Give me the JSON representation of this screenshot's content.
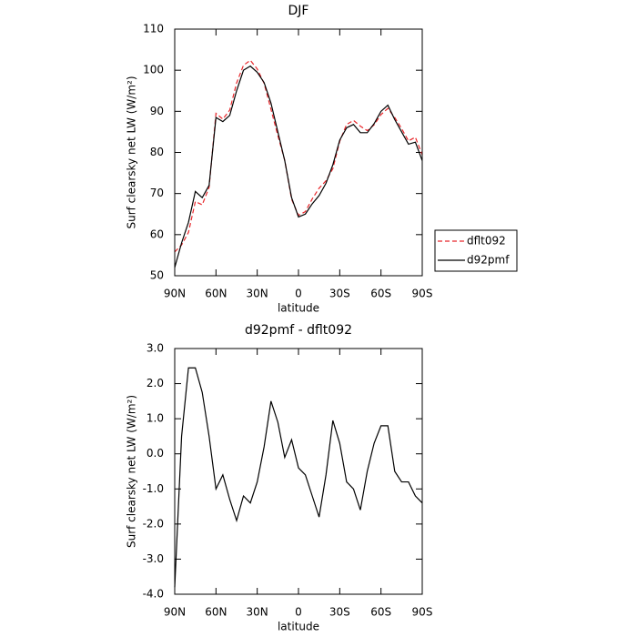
{
  "chart_data": [
    {
      "type": "line",
      "title": "DJF",
      "xlabel": "latitude",
      "ylabel": "Surf clearsky net LW (W/m²)",
      "x": [
        90,
        85,
        80,
        75,
        70,
        65,
        60,
        55,
        50,
        45,
        40,
        35,
        30,
        25,
        20,
        15,
        10,
        5,
        0,
        -5,
        -10,
        -15,
        -20,
        -25,
        -30,
        -35,
        -40,
        -45,
        -50,
        -55,
        -60,
        -65,
        -70,
        -75,
        -80,
        -85,
        -90
      ],
      "series": [
        {
          "name": "dflt092",
          "color": "#e8262a",
          "linestyle": "dashed",
          "values": [
            55.8,
            57.5,
            60.55,
            68.05,
            67.25,
            71.5,
            89.5,
            88.1,
            90.3,
            96.9,
            101.2,
            102.4,
            100.3,
            96.8,
            90.5,
            84.1,
            78.1,
            68.6,
            64.7,
            65.6,
            68.7,
            71.3,
            73.1,
            76.05,
            82.7,
            86.8,
            87.8,
            86.4,
            85.3,
            86.7,
            89.2,
            90.7,
            88.5,
            85.8,
            82.8,
            83.7,
            79.4
          ]
        },
        {
          "name": "d92pmf",
          "color": "#000000",
          "linestyle": "solid",
          "values": [
            52,
            58,
            63,
            70.5,
            69,
            72,
            88.5,
            87.5,
            89,
            95,
            100,
            101,
            99.5,
            97,
            92,
            85,
            78,
            69,
            64.3,
            65,
            67.5,
            69.5,
            72.5,
            77,
            83,
            86,
            86.8,
            84.8,
            84.8,
            87,
            90,
            91.5,
            88,
            85,
            82,
            82.5,
            78
          ]
        }
      ],
      "xlim": [
        90,
        -90
      ],
      "xticks": [
        {
          "value": 90,
          "label": "90N"
        },
        {
          "value": 60,
          "label": "60N"
        },
        {
          "value": 30,
          "label": "30N"
        },
        0,
        {
          "value": -30,
          "label": "30S"
        },
        {
          "value": -60,
          "label": "60S"
        },
        {
          "value": -90,
          "label": "90S"
        }
      ],
      "ylim": [
        50,
        110
      ],
      "yticks": [
        50,
        60,
        70,
        80,
        90,
        100,
        110
      ],
      "legend": "right"
    },
    {
      "type": "line",
      "title": "d92pmf - dflt092",
      "xlabel": "latitude",
      "ylabel": "Surf clearsky net LW (W/m²)",
      "x": [
        90,
        85,
        80,
        75,
        70,
        65,
        60,
        55,
        50,
        45,
        40,
        35,
        30,
        25,
        20,
        15,
        10,
        5,
        0,
        -5,
        -10,
        -15,
        -20,
        -25,
        -30,
        -35,
        -40,
        -45,
        -50,
        -55,
        -60,
        -65,
        -70,
        -75,
        -80,
        -85,
        -90
      ],
      "values": [
        -3.8,
        0.5,
        2.45,
        2.45,
        1.75,
        0.5,
        -1.0,
        -0.6,
        -1.3,
        -1.9,
        -1.2,
        -1.4,
        -0.8,
        0.2,
        1.5,
        0.9,
        -0.1,
        0.4,
        -0.4,
        -0.6,
        -1.2,
        -1.8,
        -0.6,
        0.95,
        0.3,
        -0.8,
        -1.0,
        -1.6,
        -0.5,
        0.3,
        0.8,
        0.8,
        -0.5,
        -0.8,
        -0.8,
        -1.2,
        -1.4
      ],
      "color": "#000000",
      "xlim": [
        90,
        -90
      ],
      "xticks": [
        {
          "value": 90,
          "label": "90N"
        },
        {
          "value": 60,
          "label": "60N"
        },
        {
          "value": 30,
          "label": "30N"
        },
        0,
        {
          "value": -30,
          "label": "30S"
        },
        {
          "value": -60,
          "label": "60S"
        },
        {
          "value": -90,
          "label": "90S"
        }
      ],
      "ylim": [
        -4,
        3
      ],
      "yticks": [
        {
          "value": -4,
          "label": "-4.0"
        },
        {
          "value": -3,
          "label": "-3.0"
        },
        {
          "value": -2,
          "label": "-2.0"
        },
        {
          "value": -1,
          "label": "-1.0"
        },
        {
          "value": 0,
          "label": "0.0"
        },
        {
          "value": 1,
          "label": "1.0"
        },
        {
          "value": 2,
          "label": "2.0"
        },
        {
          "value": 3,
          "label": "3.0"
        }
      ]
    }
  ]
}
